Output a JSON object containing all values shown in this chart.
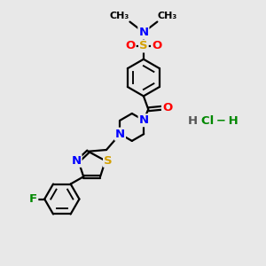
{
  "background_color": "#e8e8e8",
  "atom_colors": {
    "N": "#0000ff",
    "O": "#ff0000",
    "S": "#d4a000",
    "F": "#008800",
    "C": "#000000",
    "Cl": "#008800"
  },
  "HCl_color": "#008800",
  "H_color": "#555555",
  "bond_color": "#000000",
  "bond_lw": 1.6,
  "figsize": [
    3.0,
    3.0
  ],
  "dpi": 100,
  "xlim": [
    0,
    10
  ],
  "ylim": [
    0,
    10
  ]
}
